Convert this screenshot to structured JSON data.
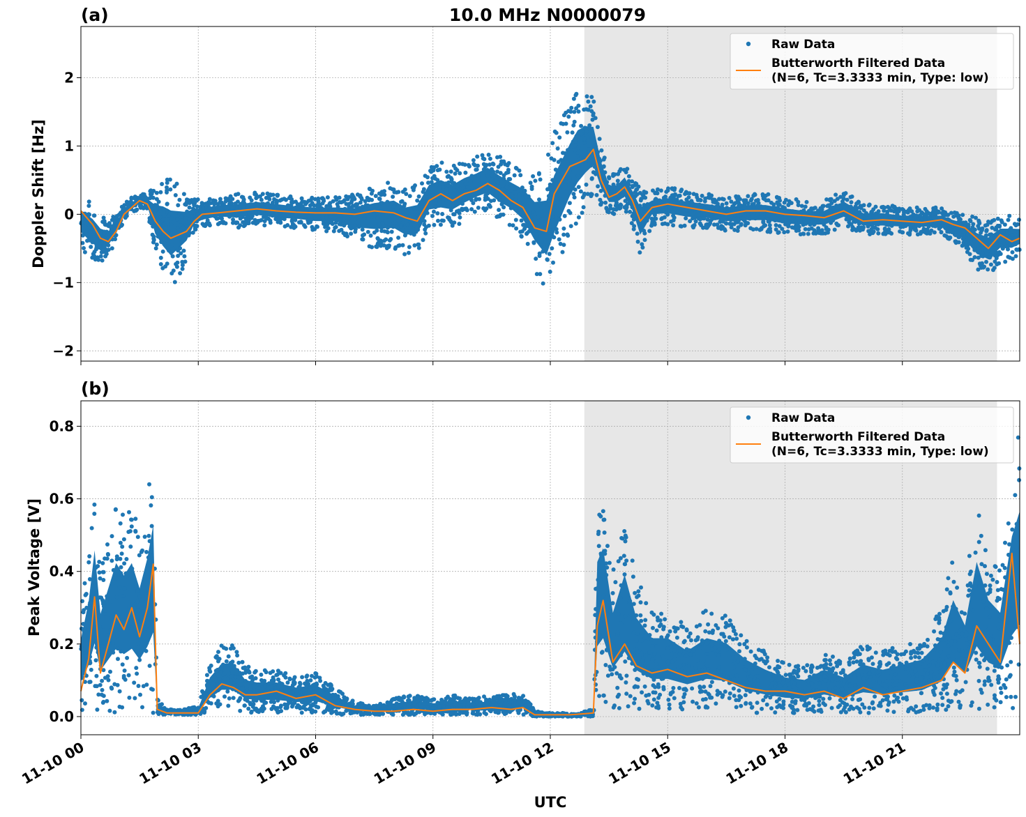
{
  "figure": {
    "title": "10.0 MHz N0000079",
    "xlabel": "UTC"
  },
  "colors": {
    "raw": "#1f77b4",
    "filtered": "#ff7f0e",
    "shaded": "#e7e7e7",
    "grid": "#b0b0b0"
  },
  "chart_data": [
    {
      "type": "scatter",
      "panel_label": "(a)",
      "ylabel": "Doppler Shift [Hz]",
      "xlim_hours": [
        0,
        24
      ],
      "ylim": [
        -2.15,
        2.75
      ],
      "yticks": [
        {
          "value": 2,
          "label": "2"
        },
        {
          "value": 1,
          "label": "1"
        },
        {
          "value": 0,
          "label": "0"
        },
        {
          "value": -1,
          "label": "−1"
        },
        {
          "value": -2,
          "label": "−2"
        }
      ],
      "shaded_region_hours": [
        12.87,
        23.42
      ],
      "grid": true,
      "legend": {
        "placement": "top-right",
        "entries": [
          "Raw Data",
          "Butterworth Filtered Data",
          "(N=6, Tc=3.3333 min, Type: low)"
        ]
      },
      "series": [
        {
          "name": "Butterworth Filtered Data",
          "kind": "line",
          "x_hours": [
            0,
            0.3,
            0.5,
            0.7,
            0.9,
            1.1,
            1.3,
            1.5,
            1.7,
            1.9,
            2.1,
            2.3,
            2.5,
            2.7,
            2.9,
            3.1,
            3.5,
            4,
            4.5,
            5,
            5.5,
            6,
            6.5,
            7,
            7.5,
            8,
            8.3,
            8.6,
            8.9,
            9.2,
            9.5,
            9.8,
            10.1,
            10.4,
            10.7,
            11,
            11.3,
            11.6,
            11.9,
            12.1,
            12.3,
            12.5,
            12.7,
            12.9,
            13.1,
            13.3,
            13.5,
            13.7,
            13.9,
            14.1,
            14.3,
            14.6,
            15,
            15.5,
            16,
            16.5,
            17,
            17.5,
            18,
            18.5,
            19,
            19.5,
            20,
            20.5,
            21,
            21.5,
            22,
            22.3,
            22.6,
            22.9,
            23.2,
            23.5,
            23.8,
            24
          ],
          "y": [
            0.05,
            -0.15,
            -0.35,
            -0.4,
            -0.25,
            0,
            0.1,
            0.2,
            0.15,
            -0.1,
            -0.25,
            -0.35,
            -0.3,
            -0.25,
            -0.1,
            0,
            0.02,
            0.05,
            0.08,
            0.05,
            0.03,
            0.02,
            0.02,
            0,
            0.05,
            0.02,
            -0.05,
            -0.1,
            0.2,
            0.3,
            0.2,
            0.3,
            0.35,
            0.45,
            0.35,
            0.2,
            0.1,
            -0.2,
            -0.25,
            0.3,
            0.5,
            0.7,
            0.75,
            0.8,
            0.95,
            0.5,
            0.25,
            0.3,
            0.4,
            0.2,
            -0.1,
            0.1,
            0.15,
            0.1,
            0.05,
            0,
            0.05,
            0.05,
            0,
            -0.02,
            -0.05,
            0.05,
            -0.1,
            -0.08,
            -0.1,
            -0.12,
            -0.08,
            -0.15,
            -0.2,
            -0.35,
            -0.5,
            -0.3,
            -0.4,
            -0.35
          ]
        },
        {
          "name": "Raw Data",
          "kind": "scatter-band",
          "x_hours": [
            0,
            0.3,
            0.5,
            0.7,
            0.9,
            1.1,
            1.3,
            1.5,
            1.7,
            1.9,
            2.1,
            2.3,
            2.5,
            2.7,
            2.9,
            3.1,
            3.5,
            4,
            4.5,
            5,
            5.5,
            6,
            6.5,
            7,
            7.5,
            8,
            8.3,
            8.6,
            8.9,
            9.2,
            9.5,
            9.8,
            10.1,
            10.4,
            10.7,
            11,
            11.3,
            11.6,
            11.9,
            12.1,
            12.3,
            12.5,
            12.7,
            12.9,
            13.1,
            13.3,
            13.5,
            13.7,
            13.9,
            14.1,
            14.3,
            14.6,
            15,
            15.5,
            16,
            16.5,
            17,
            17.5,
            18,
            18.5,
            19,
            19.5,
            20,
            20.5,
            21,
            21.5,
            22,
            22.3,
            22.6,
            22.9,
            23.2,
            23.5,
            23.8,
            24
          ],
          "y_low": [
            -0.5,
            -0.7,
            -0.7,
            -0.6,
            -0.4,
            -0.1,
            0,
            0.1,
            0.05,
            -0.6,
            -0.9,
            -1.1,
            -0.9,
            -0.7,
            -0.3,
            -0.2,
            -0.15,
            -0.2,
            -0.15,
            -0.2,
            -0.2,
            -0.25,
            -0.25,
            -0.4,
            -0.5,
            -0.5,
            -0.6,
            -0.6,
            -0.2,
            -0.2,
            -0.2,
            -0.1,
            0,
            0.05,
            -0.1,
            -0.2,
            -0.4,
            -0.8,
            -1.2,
            -0.9,
            -0.6,
            -0.3,
            -0.1,
            0.1,
            0.3,
            0.1,
            0,
            0,
            0.05,
            -0.15,
            -0.6,
            -0.15,
            -0.15,
            -0.2,
            -0.2,
            -0.25,
            -0.25,
            -0.25,
            -0.3,
            -0.3,
            -0.3,
            -0.2,
            -0.3,
            -0.3,
            -0.3,
            -0.3,
            -0.3,
            -0.4,
            -0.55,
            -0.8,
            -0.9,
            -0.7,
            -0.7,
            -0.6
          ],
          "y_high": [
            0.3,
            0.2,
            0,
            -0.1,
            0,
            0.15,
            0.25,
            0.3,
            0.3,
            0.45,
            0.55,
            0.55,
            0.45,
            0.35,
            0.25,
            0.2,
            0.25,
            0.3,
            0.32,
            0.3,
            0.25,
            0.25,
            0.25,
            0.3,
            0.45,
            0.5,
            0.4,
            0.45,
            0.7,
            0.8,
            0.7,
            0.8,
            0.85,
            0.95,
            0.85,
            0.75,
            0.7,
            0.6,
            0.8,
            1.2,
            1.4,
            1.6,
            1.8,
            1.8,
            1.7,
            1.05,
            0.6,
            0.6,
            0.75,
            0.55,
            0.4,
            0.35,
            0.4,
            0.35,
            0.3,
            0.25,
            0.3,
            0.3,
            0.25,
            0.2,
            0.2,
            0.35,
            0.15,
            0.15,
            0.1,
            0.1,
            0.1,
            0.05,
            0.05,
            -0.05,
            -0.1,
            0,
            0,
            -0.05
          ]
        }
      ]
    },
    {
      "type": "scatter",
      "panel_label": "(b)",
      "ylabel": "Peak Voltage [V]",
      "xlim_hours": [
        0,
        24
      ],
      "ylim": [
        -0.05,
        0.87
      ],
      "yticks": [
        {
          "value": 0.8,
          "label": "0.8"
        },
        {
          "value": 0.6,
          "label": "0.6"
        },
        {
          "value": 0.4,
          "label": "0.4"
        },
        {
          "value": 0.2,
          "label": "0.2"
        },
        {
          "value": 0.0,
          "label": "0.0"
        }
      ],
      "shaded_region_hours": [
        12.87,
        23.42
      ],
      "grid": true,
      "legend": {
        "placement": "top-right",
        "entries": [
          "Raw Data",
          "Butterworth Filtered Data",
          "(N=6, Tc=3.3333 min, Type: low)"
        ]
      },
      "series": [
        {
          "name": "Butterworth Filtered Data",
          "kind": "line",
          "x_hours": [
            0,
            0.2,
            0.35,
            0.5,
            0.7,
            0.9,
            1.1,
            1.3,
            1.5,
            1.7,
            1.85,
            1.95,
            2.2,
            2.6,
            3,
            3.3,
            3.6,
            3.9,
            4.2,
            4.5,
            5,
            5.5,
            6,
            6.5,
            7,
            7.5,
            8,
            8.5,
            9,
            9.5,
            10,
            10.5,
            11,
            11.3,
            11.6,
            12,
            12.5,
            12.9,
            13.1,
            13.2,
            13.35,
            13.6,
            13.9,
            14.2,
            14.6,
            15,
            15.5,
            16,
            16.5,
            17,
            17.5,
            18,
            18.5,
            19,
            19.5,
            20,
            20.5,
            21,
            21.5,
            22,
            22.3,
            22.6,
            22.9,
            23.2,
            23.5,
            23.8,
            24
          ],
          "y": [
            0.07,
            0.16,
            0.33,
            0.12,
            0.2,
            0.28,
            0.24,
            0.3,
            0.22,
            0.3,
            0.42,
            0.02,
            0.01,
            0.01,
            0.01,
            0.06,
            0.09,
            0.08,
            0.06,
            0.06,
            0.07,
            0.05,
            0.06,
            0.03,
            0.02,
            0.015,
            0.015,
            0.02,
            0.015,
            0.02,
            0.02,
            0.025,
            0.02,
            0.025,
            0.005,
            0.005,
            0.005,
            0.008,
            0.01,
            0.25,
            0.32,
            0.15,
            0.2,
            0.14,
            0.12,
            0.13,
            0.11,
            0.12,
            0.1,
            0.08,
            0.07,
            0.07,
            0.06,
            0.07,
            0.05,
            0.08,
            0.06,
            0.07,
            0.08,
            0.1,
            0.15,
            0.12,
            0.25,
            0.2,
            0.15,
            0.45,
            0.2
          ]
        },
        {
          "name": "Raw Data",
          "kind": "scatter-band",
          "x_hours": [
            0,
            0.2,
            0.35,
            0.5,
            0.7,
            0.9,
            1.1,
            1.3,
            1.5,
            1.7,
            1.85,
            1.95,
            2.2,
            2.6,
            3,
            3.3,
            3.6,
            3.9,
            4.2,
            4.5,
            5,
            5.5,
            6,
            6.5,
            7,
            7.5,
            8,
            8.5,
            9,
            9.5,
            10,
            10.5,
            11,
            11.3,
            11.6,
            12,
            12.5,
            12.9,
            13.1,
            13.2,
            13.35,
            13.6,
            13.9,
            14.2,
            14.6,
            15,
            15.5,
            16,
            16.5,
            17,
            17.5,
            18,
            18.5,
            19,
            19.5,
            20,
            20.5,
            21,
            21.5,
            22,
            22.3,
            22.6,
            22.9,
            23.2,
            23.5,
            23.8,
            24
          ],
          "y_low": [
            0.01,
            0.01,
            0.01,
            0.01,
            0.01,
            0.01,
            0.01,
            0.01,
            0.01,
            0.01,
            0.01,
            0.005,
            0.005,
            0.005,
            0.005,
            0.01,
            0.02,
            0.02,
            0.01,
            0.01,
            0.01,
            0.01,
            0.01,
            0.005,
            0.005,
            0.005,
            0.005,
            0.005,
            0.005,
            0.005,
            0.005,
            0.005,
            0.005,
            0.005,
            0,
            0,
            0,
            0,
            0,
            0.02,
            0.03,
            0.02,
            0.02,
            0.02,
            0.02,
            0.02,
            0.02,
            0.02,
            0.02,
            0.01,
            0.01,
            0.01,
            0.01,
            0.01,
            0.01,
            0.01,
            0.01,
            0.01,
            0.01,
            0.01,
            0.02,
            0.02,
            0.02,
            0.02,
            0.02,
            0.02,
            0.02
          ],
          "y_high": [
            0.3,
            0.45,
            0.65,
            0.4,
            0.5,
            0.6,
            0.55,
            0.6,
            0.5,
            0.62,
            0.75,
            0.05,
            0.02,
            0.02,
            0.03,
            0.15,
            0.2,
            0.2,
            0.14,
            0.13,
            0.13,
            0.11,
            0.12,
            0.08,
            0.04,
            0.03,
            0.05,
            0.06,
            0.05,
            0.06,
            0.05,
            0.06,
            0.06,
            0.07,
            0.015,
            0.01,
            0.01,
            0.015,
            0.02,
            0.6,
            0.65,
            0.4,
            0.55,
            0.38,
            0.3,
            0.3,
            0.25,
            0.3,
            0.28,
            0.22,
            0.18,
            0.15,
            0.14,
            0.18,
            0.15,
            0.2,
            0.18,
            0.2,
            0.22,
            0.3,
            0.45,
            0.35,
            0.6,
            0.45,
            0.4,
            0.7,
            0.8
          ]
        }
      ]
    }
  ],
  "x_ticks": [
    {
      "hour": 0,
      "label": "11-10 00"
    },
    {
      "hour": 3,
      "label": "11-10 03"
    },
    {
      "hour": 6,
      "label": "11-10 06"
    },
    {
      "hour": 9,
      "label": "11-10 09"
    },
    {
      "hour": 12,
      "label": "11-10 12"
    },
    {
      "hour": 15,
      "label": "11-10 15"
    },
    {
      "hour": 18,
      "label": "11-10 18"
    },
    {
      "hour": 21,
      "label": "11-10 21"
    }
  ]
}
